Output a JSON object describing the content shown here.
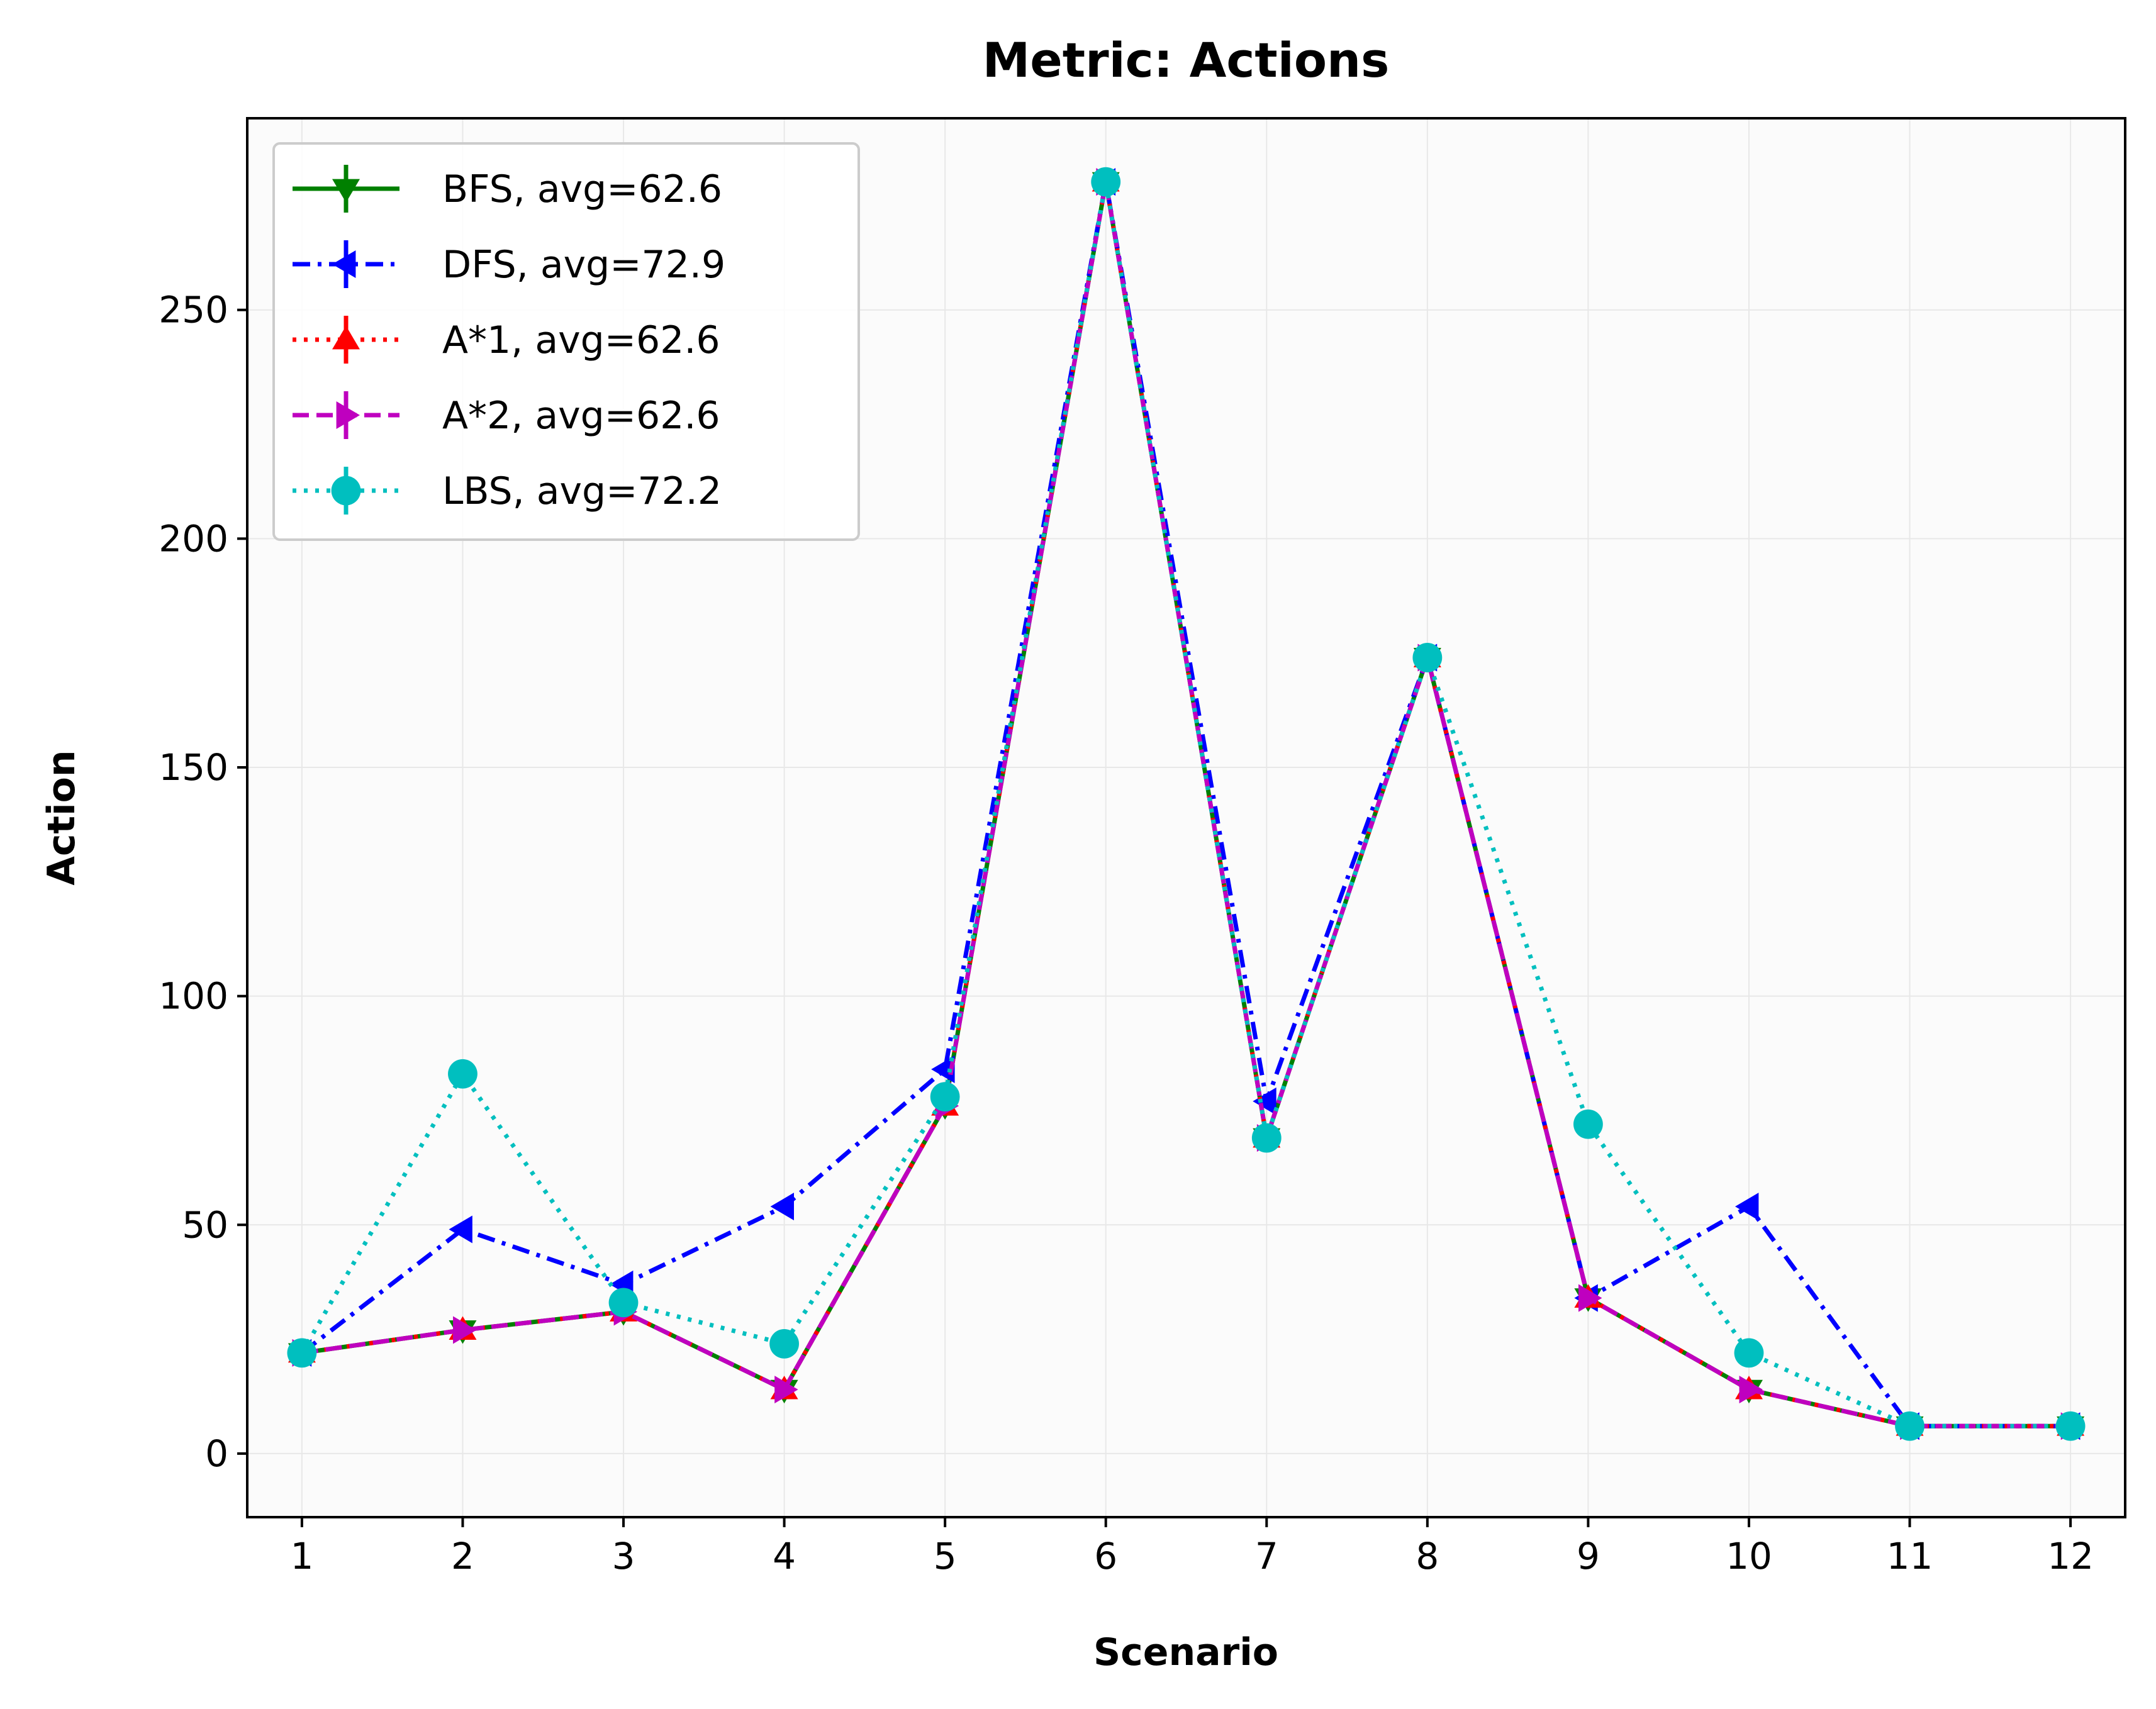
{
  "chart_data": {
    "type": "line",
    "title": "Metric: Actions",
    "xlabel": "Scenario",
    "ylabel": "Action",
    "x": [
      1,
      2,
      3,
      4,
      5,
      6,
      7,
      8,
      9,
      10,
      11,
      12
    ],
    "xlim": [
      0.66,
      12.34
    ],
    "ylim": [
      -13.9,
      291.9
    ],
    "yticks": [
      0,
      50,
      100,
      150,
      200,
      250
    ],
    "grid": true,
    "legend_position": "upper-left",
    "series": [
      {
        "name": "BFS, avg=62.6",
        "color": "#008000",
        "linestyle": "solid",
        "marker": "triangle-down",
        "values": [
          22,
          27,
          31,
          14,
          76,
          278,
          69,
          174,
          34,
          14,
          6,
          6
        ]
      },
      {
        "name": "DFS, avg=72.9",
        "color": "#0000ff",
        "linestyle": "dashdot",
        "marker": "triangle-left",
        "values": [
          22,
          49,
          37,
          54,
          84,
          278,
          77,
          174,
          34,
          54,
          6,
          6
        ]
      },
      {
        "name": "A*1, avg=62.6",
        "color": "#ff0000",
        "linestyle": "dotted",
        "marker": "triangle-up",
        "values": [
          22,
          27,
          31,
          14,
          76,
          278,
          69,
          174,
          34,
          14,
          6,
          6
        ]
      },
      {
        "name": "A*2, avg=62.6",
        "color": "#bf00bf",
        "linestyle": "dashed",
        "marker": "triangle-right",
        "values": [
          22,
          27,
          31,
          14,
          76,
          278,
          69,
          174,
          34,
          14,
          6,
          6
        ]
      },
      {
        "name": "LBS, avg=72.2",
        "color": "#00bfbf",
        "linestyle": "dotted",
        "marker": "circle",
        "values": [
          22,
          83,
          33,
          24,
          78,
          278,
          69,
          174,
          72,
          22,
          6,
          6
        ]
      }
    ]
  }
}
